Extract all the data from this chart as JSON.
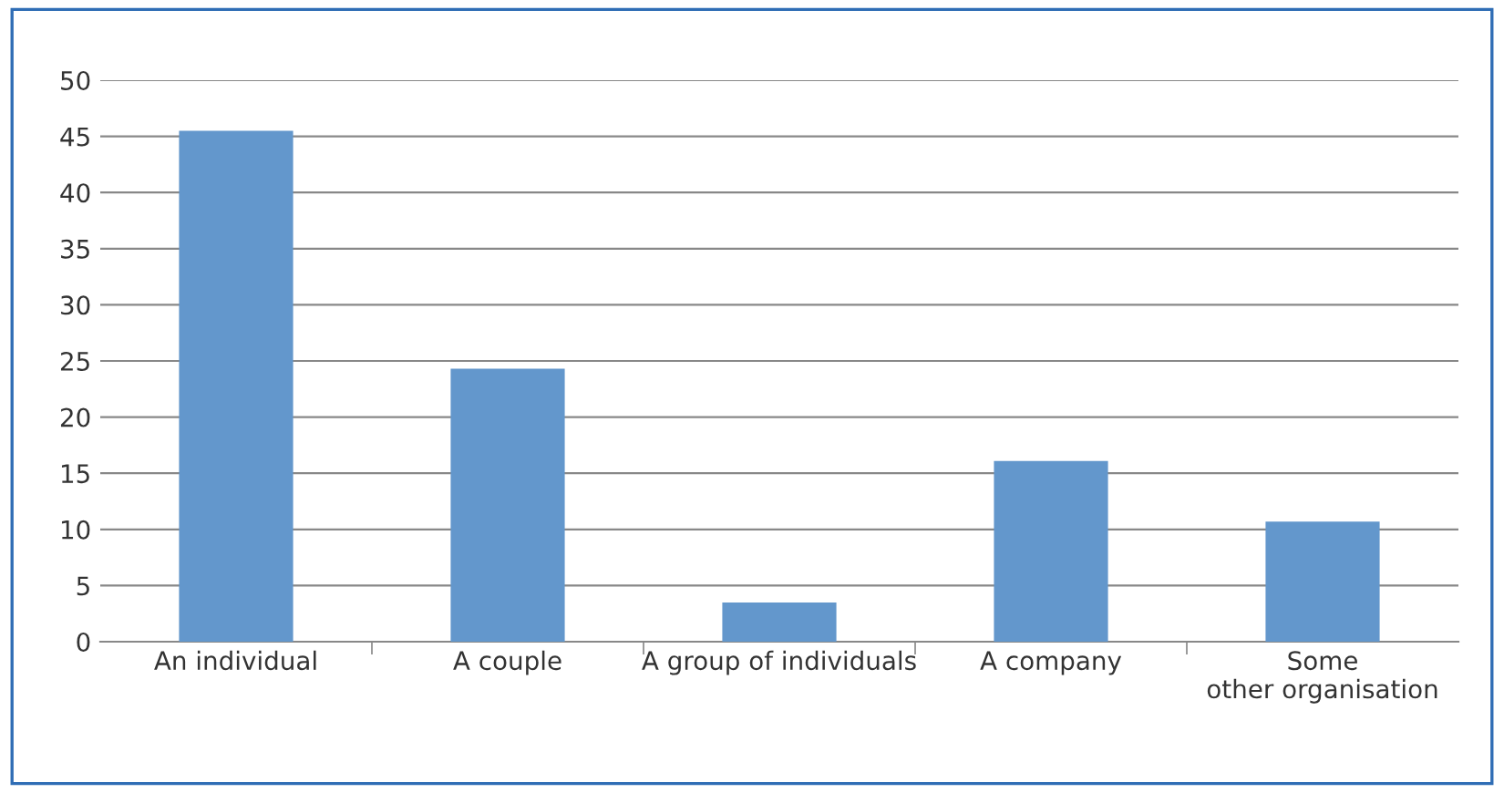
{
  "chart_data": {
    "type": "bar",
    "categories": [
      "An individual",
      "A couple",
      "A group of individuals",
      "A company",
      "Some other organisation"
    ],
    "values": [
      45.5,
      24.3,
      3.5,
      16.1,
      10.7
    ],
    "color": "#6397cc",
    "ylim": [
      0,
      50
    ],
    "yticks": [
      0,
      5,
      10,
      15,
      20,
      25,
      30,
      35,
      40,
      45,
      50
    ],
    "grid": "y"
  }
}
